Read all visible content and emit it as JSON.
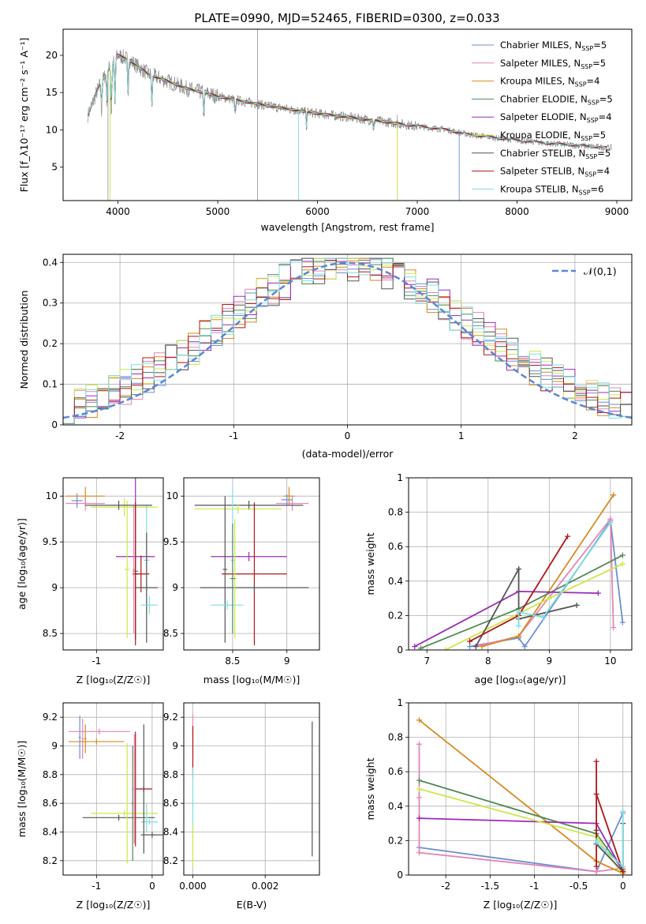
{
  "figure_title": "PLATE=0990, MJD=52465, FIBERID=0300, z=0.033",
  "colors": {
    "Chabrier MILES": "#6a8fd6",
    "Salpeter MILES": "#e386b6",
    "Kroupa MILES": "#d88a22",
    "Chabrier ELODIE": "#4f8a55",
    "Salpeter ELODIE": "#9b2bb8",
    "Kroupa ELODIE": "#cbe84a",
    "Chabrier STELIB": "#555555",
    "Salpeter STELIB": "#b3151a",
    "Kroupa STELIB": "#7fdde0",
    "gaussian": "#5b87d6",
    "data_spectrum": "#808080"
  },
  "chart_data": [
    {
      "id": "spectrum",
      "type": "line",
      "title": "PLATE=0990, MJD=52465, FIBERID=0300, z=0.033",
      "xlabel": "wavelength [Angstrom, rest frame]",
      "ylabel": "Flux [f_λ10⁻¹⁷ erg cm⁻² s⁻¹ A⁻¹]",
      "xlim": [
        3450,
        9150
      ],
      "ylim": [
        0.5,
        23.5
      ],
      "xticks": [
        4000,
        5000,
        6000,
        7000,
        8000,
        9000
      ],
      "yticks": [
        5,
        10,
        15,
        20
      ],
      "grid": false,
      "legend_position": "top-right",
      "legend": [
        "Chabrier MILES, N_SSP=5",
        "Salpeter MILES, N_SSP=5",
        "Kroupa MILES, N_SSP=4",
        "Chabrier ELODIE, N_SSP=5",
        "Salpeter ELODIE, N_SSP=4",
        "Kroupa ELODIE, N_SSP=5",
        "Chabrier STELIB, N_SSP=5",
        "Salpeter STELIB, N_SSP=4",
        "Kroupa STELIB, N_SSP=6"
      ],
      "continuum": {
        "x": [
          3700,
          3800,
          3900,
          4000,
          4100,
          4300,
          4500,
          4700,
          5000,
          5300,
          5600,
          6000,
          6300,
          6600,
          7000,
          7300,
          7500,
          7800,
          8000,
          8300,
          8500,
          8700,
          8900
        ],
        "y": [
          12.0,
          15.5,
          18.0,
          20.0,
          19.5,
          17.5,
          16.5,
          15.5,
          14.5,
          13.7,
          13.0,
          12.2,
          11.7,
          11.2,
          10.5,
          10.0,
          9.4,
          8.9,
          8.6,
          8.2,
          8.0,
          7.8,
          7.6
        ]
      }
    },
    {
      "id": "residual_distribution",
      "type": "histogram",
      "xlabel": "(data-model)/error",
      "ylabel": "Normed distribution",
      "xlim": [
        -2.5,
        2.5
      ],
      "ylim": [
        0,
        0.42
      ],
      "xticks": [
        -2,
        -1,
        0,
        1,
        2
      ],
      "yticks": [
        0.0,
        0.1,
        0.2,
        0.3,
        0.4
      ],
      "grid": true,
      "bin_width": 0.1,
      "legend": [
        "𝒩(0,1)"
      ],
      "legend_position": "top-right",
      "gaussian": {
        "mean": 0,
        "sigma": 1
      }
    },
    {
      "id": "age_vs_Z",
      "type": "errorbar",
      "xlabel": "Z [log₁₀(Z/Z☉)]",
      "ylabel": "age  [log₁₀(age/yr)]",
      "xlim": [
        -1.6,
        0.2
      ],
      "ylim": [
        8.32,
        10.2
      ],
      "xticks": [
        -1
      ],
      "yticks": [
        8.5,
        9.0,
        9.5,
        10.0
      ],
      "grid": true,
      "points": [
        {
          "series": "Kroupa MILES",
          "x": -1.2,
          "xerr": 0.35,
          "y": 10.0,
          "yerr": 0.1
        },
        {
          "series": "Salpeter MILES",
          "x": -1.2,
          "xerr": 0.35,
          "y": 9.92,
          "yerr": 0.08
        },
        {
          "series": "Chabrier MILES",
          "x": -1.35,
          "xerr": 0.1,
          "y": 9.95,
          "yerr": 0.08
        },
        {
          "series": "Kroupa ELODIE",
          "x": -0.5,
          "xerr": 0.6,
          "y": 9.88,
          "yerr": 0.1
        },
        {
          "series": "Salpeter ELODIE",
          "x": -0.3,
          "xerr": 0.35,
          "y": 9.34,
          "yerr": 0.9
        },
        {
          "series": "Kroupa ELODIE",
          "x": -0.45,
          "xerr": 0.05,
          "y": 9.2,
          "yerr": 0.75
        },
        {
          "series": "Chabrier ELODIE",
          "x": -0.3,
          "xerr": 0.05,
          "y": 9.18,
          "yerr": 0.75
        },
        {
          "series": "Salpeter STELIB",
          "x": -0.3,
          "xerr": 0.05,
          "y": 9.15,
          "yerr": 0.78
        },
        {
          "series": "Salpeter STELIB",
          "x": -0.2,
          "xerr": 0.15,
          "y": 9.15,
          "yerr": 0.2
        },
        {
          "series": "Salpeter MILES",
          "x": -0.33,
          "xerr": 0.02,
          "y": 9.2,
          "yerr": 0.7
        },
        {
          "series": "Kroupa STELIB",
          "x": -0.1,
          "xerr": 0.05,
          "y": 9.3,
          "yerr": 0.6
        },
        {
          "series": "Chabrier STELIB",
          "x": -0.1,
          "xerr": 0.2,
          "y": 9.0,
          "yerr": 0.6
        },
        {
          "series": "Kroupa STELIB",
          "x": -0.05,
          "xerr": 0.15,
          "y": 8.81,
          "yerr": 0.1
        },
        {
          "series": "Chabrier STELIB",
          "x": -0.6,
          "xerr": 0.6,
          "y": 9.9,
          "yerr": 0.05
        }
      ]
    },
    {
      "id": "age_vs_mass",
      "type": "errorbar",
      "xlabel": "mass [log₁₀(M/M☉)]",
      "ylabel": "",
      "xlim": [
        8.05,
        9.3
      ],
      "ylim": [
        8.32,
        10.2
      ],
      "xticks": [
        8.5,
        9.0
      ],
      "yticks": [
        8.5,
        9.0,
        9.5,
        10.0
      ],
      "grid": true,
      "points": [
        {
          "series": "Kroupa MILES",
          "x": 9.02,
          "xerr": 0.05,
          "y": 10.0,
          "yerr": 0.1
        },
        {
          "series": "Salpeter MILES",
          "x": 9.05,
          "xerr": 0.15,
          "y": 9.92,
          "yerr": 0.08
        },
        {
          "series": "Chabrier MILES",
          "x": 9.0,
          "xerr": 0.05,
          "y": 9.96,
          "yerr": 0.06
        },
        {
          "series": "Chabrier STELIB",
          "x": 8.65,
          "xerr": 0.5,
          "y": 9.9,
          "yerr": 0.05
        },
        {
          "series": "Kroupa ELODIE",
          "x": 8.55,
          "xerr": 0.4,
          "y": 9.86,
          "yerr": 0.05
        },
        {
          "series": "Salpeter ELODIE",
          "x": 8.65,
          "xerr": 0.35,
          "y": 9.34,
          "yerr": 0.05
        },
        {
          "series": "Salpeter STELIB",
          "x": 8.7,
          "xerr": 0.3,
          "y": 9.15,
          "yerr": 0.78
        },
        {
          "series": "Chabrier STELIB",
          "x": 8.7,
          "xerr": 0.5,
          "y": 9.0,
          "yerr": 0.05
        },
        {
          "series": "Chabrier STELIB",
          "x": 8.43,
          "xerr": 0.02,
          "y": 9.2,
          "yerr": 0.8
        },
        {
          "series": "Kroupa STELIB",
          "x": 8.5,
          "xerr": 0.02,
          "y": 9.3,
          "yerr": 0.8
        },
        {
          "series": "Kroupa STELIB",
          "x": 8.45,
          "xerr": 0.15,
          "y": 8.81,
          "yerr": 0.05
        },
        {
          "series": "Kroupa ELODIE",
          "x": 8.52,
          "xerr": 0.02,
          "y": 9.1,
          "yerr": 0.65
        },
        {
          "series": "Chabrier ELODIE",
          "x": 8.5,
          "xerr": 0.02,
          "y": 9.1,
          "yerr": 0.6
        }
      ]
    },
    {
      "id": "weight_vs_age",
      "type": "line",
      "xlabel": "age  [log₁₀(age/yr)]",
      "ylabel": "mass weight",
      "xlim": [
        6.7,
        10.35
      ],
      "ylim": [
        0,
        1
      ],
      "xticks": [
        7,
        8,
        9,
        10
      ],
      "yticks": [
        0.0,
        0.2,
        0.4,
        0.6,
        0.8,
        1.0
      ],
      "grid": true,
      "series": [
        {
          "name": "Chabrier MILES",
          "x": [
            7.7,
            8.5,
            8.6,
            10.0,
            10.2
          ],
          "y": [
            0.02,
            0.07,
            0.02,
            0.75,
            0.16
          ]
        },
        {
          "name": "Salpeter MILES",
          "x": [
            7.8,
            8.5,
            10.0,
            10.05
          ],
          "y": [
            0.02,
            0.08,
            0.76,
            0.13
          ]
        },
        {
          "name": "Kroupa MILES",
          "x": [
            7.9,
            8.5,
            10.05
          ],
          "y": [
            0.02,
            0.08,
            0.9
          ]
        },
        {
          "name": "Chabrier ELODIE",
          "x": [
            6.9,
            8.5,
            10.2
          ],
          "y": [
            0.01,
            0.24,
            0.55
          ]
        },
        {
          "name": "Salpeter ELODIE",
          "x": [
            6.8,
            8.5,
            9.8
          ],
          "y": [
            0.02,
            0.34,
            0.33
          ]
        },
        {
          "name": "Kroupa ELODIE",
          "x": [
            7.3,
            9.0,
            10.2
          ],
          "y": [
            0.0,
            0.3,
            0.5
          ]
        },
        {
          "name": "Chabrier STELIB",
          "x": [
            7.8,
            8.5,
            8.5,
            9.45
          ],
          "y": [
            0.02,
            0.47,
            0.18,
            0.26
          ]
        },
        {
          "name": "Salpeter STELIB",
          "x": [
            7.7,
            8.5,
            9.3
          ],
          "y": [
            0.05,
            0.2,
            0.66
          ]
        },
        {
          "name": "Kroupa STELIB",
          "x": [
            8.5,
            8.5,
            8.9,
            10.0
          ],
          "y": [
            0.14,
            0.22,
            0.19,
            0.74
          ]
        }
      ]
    },
    {
      "id": "mass_vs_Z",
      "type": "errorbar",
      "xlabel": "Z [log₁₀(Z/Z☉)]",
      "ylabel": "mass [log₁₀(M/M☉)]",
      "xlim": [
        -1.6,
        0.2
      ],
      "ylim": [
        8.1,
        9.3
      ],
      "xticks": [
        -1,
        0
      ],
      "yticks": [
        8.2,
        8.4,
        8.6,
        8.8,
        9.0,
        9.2
      ],
      "grid": true,
      "points": [
        {
          "series": "Chabrier MILES",
          "x": -1.3,
          "xerr": 0.02,
          "y": 9.06,
          "yerr": 0.15
        },
        {
          "series": "Salpeter MILES",
          "x": -1.25,
          "xerr": 0.02,
          "y": 9.05,
          "yerr": 0.14
        },
        {
          "series": "Kroupa MILES",
          "x": -1.2,
          "xerr": 0.02,
          "y": 9.05,
          "yerr": 0.1
        },
        {
          "series": "Salpeter MILES",
          "x": -0.95,
          "xerr": 0.55,
          "y": 9.1,
          "yerr": 0.02
        },
        {
          "series": "Kroupa MILES",
          "x": -1.0,
          "xerr": 0.5,
          "y": 9.03,
          "yerr": 0.02
        },
        {
          "series": "Kroupa ELODIE",
          "x": -0.5,
          "xerr": 0.6,
          "y": 8.53,
          "yerr": 0.02
        },
        {
          "series": "Chabrier STELIB",
          "x": -0.6,
          "xerr": 0.65,
          "y": 8.5,
          "yerr": 0.02
        },
        {
          "series": "Kroupa ELODIE",
          "x": -0.45,
          "xerr": 0.02,
          "y": 8.6,
          "yerr": 0.42
        },
        {
          "series": "Chabrier ELODIE",
          "x": -0.35,
          "xerr": 0.02,
          "y": 8.6,
          "yerr": 0.4
        },
        {
          "series": "Salpeter STELIB",
          "x": -0.3,
          "xerr": 0.02,
          "y": 8.7,
          "yerr": 0.4
        },
        {
          "series": "Salpeter STELIB",
          "x": -0.15,
          "xerr": 0.15,
          "y": 8.7,
          "yerr": 0.02
        },
        {
          "series": "Salpeter MILES",
          "x": -0.32,
          "xerr": 0.02,
          "y": 8.7,
          "yerr": 0.38
        },
        {
          "series": "Kroupa STELIB",
          "x": -0.1,
          "xerr": 0.02,
          "y": 8.5,
          "yerr": 0.1
        },
        {
          "series": "Kroupa STELIB",
          "x": -0.05,
          "xerr": 0.15,
          "y": 8.47,
          "yerr": 0.02
        },
        {
          "series": "Chabrier STELIB",
          "x": -0.15,
          "xerr": 0.02,
          "y": 8.7,
          "yerr": 0.45
        },
        {
          "series": "Chabrier STELIB",
          "x": 0.0,
          "xerr": 0.2,
          "y": 8.38,
          "yerr": 0.02
        }
      ]
    },
    {
      "id": "mass_vs_EBV",
      "type": "errorbar",
      "xlabel": "E(B-V)",
      "ylabel": "",
      "xlim": [
        -0.00025,
        0.0035
      ],
      "ylim": [
        8.1,
        9.3
      ],
      "xticks": [
        0.0,
        0.002
      ],
      "xtick_labels": [
        "0.000",
        "0.002"
      ],
      "yticks": [
        8.2,
        8.4,
        8.6,
        8.8,
        9.0,
        9.2
      ],
      "grid": true,
      "points": [
        {
          "series": "Salpeter MILES",
          "x": 0.0,
          "xerr": 0,
          "y": 9.07,
          "yerr": 0.15
        },
        {
          "series": "Salpeter STELIB",
          "x": 0.0,
          "xerr": 0,
          "y": 8.96,
          "yerr": 0.18
        },
        {
          "series": "Kroupa STELIB",
          "x": 0.0,
          "xerr": 0,
          "y": 8.6,
          "yerr": 0.25
        },
        {
          "series": "Kroupa ELODIE",
          "x": 0.0,
          "xerr": 0,
          "y": 8.3,
          "yerr": 0.15
        },
        {
          "series": "Chabrier STELIB",
          "x": 0.0033,
          "xerr": 0,
          "y": 8.7,
          "yerr": 0.47
        }
      ]
    },
    {
      "id": "weight_vs_Z",
      "type": "line",
      "xlabel": "Z [log₁₀(Z/Z☉)]",
      "ylabel": "mass weight",
      "xlim": [
        -2.42,
        0.1
      ],
      "ylim": [
        0,
        1
      ],
      "xticks": [
        -2.0,
        -1.5,
        -1.0,
        -0.5,
        0.0
      ],
      "yticks": [
        0.0,
        0.2,
        0.4,
        0.6,
        0.8,
        1.0
      ],
      "grid": true,
      "series": [
        {
          "name": "Chabrier MILES",
          "x": [
            -2.3,
            -0.3,
            0.0
          ],
          "y": [
            0.16,
            0.02,
            0.36
          ]
        },
        {
          "name": "Salpeter MILES",
          "x": [
            -2.3,
            -2.3,
            -2.3,
            -0.3,
            0.0
          ],
          "y": [
            0.76,
            0.45,
            0.13,
            0.02,
            0.04
          ]
        },
        {
          "name": "Kroupa MILES",
          "x": [
            -2.3,
            -0.3,
            0.0
          ],
          "y": [
            0.9,
            0.08,
            0.01
          ]
        },
        {
          "name": "Chabrier ELODIE",
          "x": [
            -2.3,
            -0.3,
            0.0
          ],
          "y": [
            0.55,
            0.24,
            0.03
          ]
        },
        {
          "name": "Salpeter ELODIE",
          "x": [
            -2.3,
            -0.3,
            0.0
          ],
          "y": [
            0.33,
            0.3,
            0.02
          ]
        },
        {
          "name": "Kroupa ELODIE",
          "x": [
            -2.3,
            -0.3,
            0.0
          ],
          "y": [
            0.5,
            0.22,
            0.0
          ]
        },
        {
          "name": "Chabrier STELIB",
          "x": [
            -0.3,
            -0.3,
            0.0,
            0.0
          ],
          "y": [
            0.26,
            0.18,
            0.02,
            0.3
          ]
        },
        {
          "name": "Salpeter STELIB",
          "x": [
            -0.3,
            -0.3,
            -0.3,
            0.0
          ],
          "y": [
            0.05,
            0.66,
            0.47,
            0.02
          ]
        },
        {
          "name": "Kroupa STELIB",
          "x": [
            -0.3,
            -0.3,
            0.0,
            0.0
          ],
          "y": [
            0.2,
            0.19,
            0.05,
            0.37
          ]
        }
      ]
    }
  ]
}
